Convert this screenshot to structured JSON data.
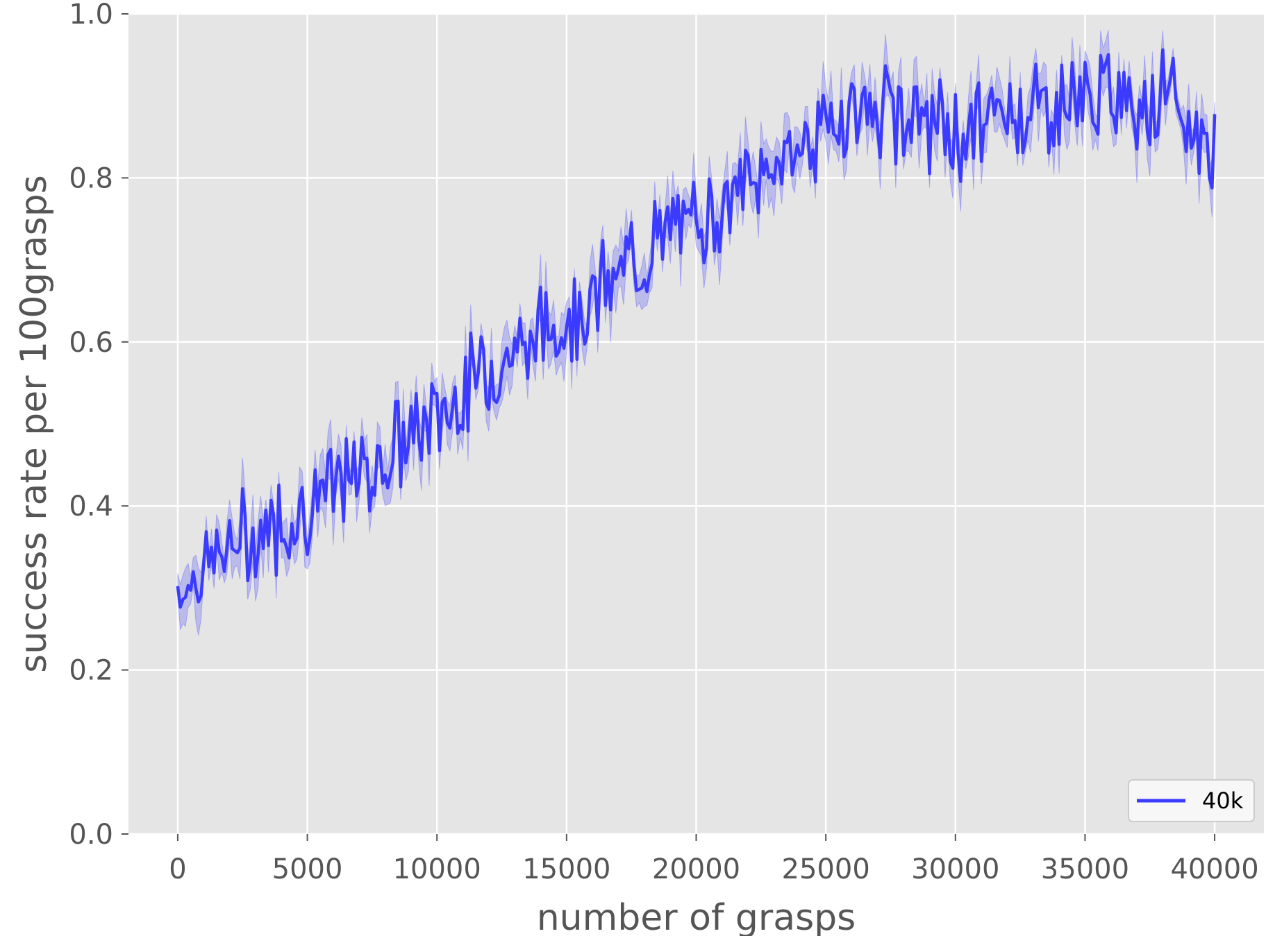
{
  "chart_data": {
    "type": "line",
    "title": "",
    "xlabel": "number of grasps",
    "ylabel": "success rate per 100grasps",
    "xlim": [
      -1900,
      41900
    ],
    "ylim": [
      0.0,
      1.0
    ],
    "xticks": [
      0,
      5000,
      10000,
      15000,
      20000,
      25000,
      30000,
      35000,
      40000
    ],
    "yticks": [
      0.0,
      0.2,
      0.4,
      0.6,
      0.8,
      1.0
    ],
    "xtick_labels": [
      "0",
      "5000",
      "10000",
      "15000",
      "20000",
      "25000",
      "30000",
      "35000",
      "40000"
    ],
    "ytick_labels": [
      "0.0",
      "0.2",
      "0.4",
      "0.6",
      "0.8",
      "1.0"
    ],
    "grid": true,
    "legend_position": "lower-right",
    "colors": {
      "line": "#3b3bff",
      "band": "#3b3bff",
      "background": "#e5e5e5",
      "grid": "#ffffff"
    },
    "series": [
      {
        "name": "40k",
        "shaded_band": true,
        "x": [
          0,
          2000,
          4000,
          6000,
          8000,
          10000,
          12000,
          14000,
          16000,
          18000,
          20000,
          22000,
          24000,
          26000,
          28000,
          30000,
          32000,
          34000,
          36000,
          38000,
          40000
        ],
        "y": [
          0.3,
          0.35,
          0.38,
          0.42,
          0.46,
          0.51,
          0.57,
          0.61,
          0.65,
          0.71,
          0.75,
          0.79,
          0.84,
          0.88,
          0.88,
          0.85,
          0.88,
          0.89,
          0.9,
          0.9,
          0.83
        ]
      }
    ]
  }
}
